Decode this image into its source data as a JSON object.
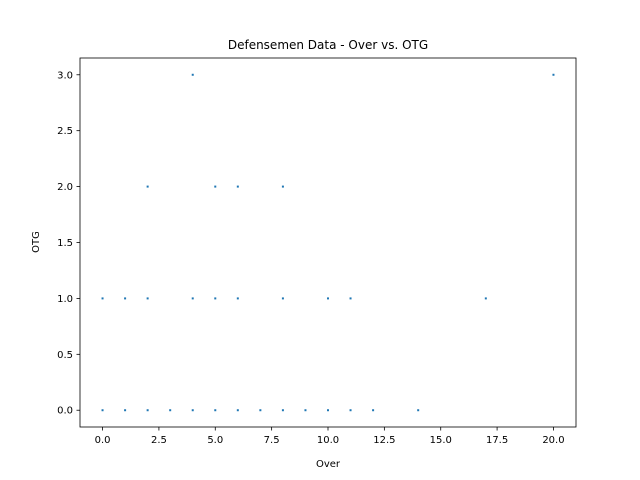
{
  "chart_data": {
    "type": "scatter",
    "title": "Defensemen Data - Over vs. OTG",
    "xlabel": "Over",
    "ylabel": "OTG",
    "xlim": [
      -1.0,
      21.0
    ],
    "ylim": [
      -0.15,
      3.15
    ],
    "xticks": [
      0.0,
      2.5,
      5.0,
      7.5,
      10.0,
      12.5,
      15.0,
      17.5,
      20.0
    ],
    "xtick_labels": [
      "0.0",
      "2.5",
      "5.0",
      "7.5",
      "10.0",
      "12.5",
      "15.0",
      "17.5",
      "20.0"
    ],
    "yticks": [
      0.0,
      0.5,
      1.0,
      1.5,
      2.0,
      2.5,
      3.0
    ],
    "ytick_labels": [
      "0.0",
      "0.5",
      "1.0",
      "1.5",
      "2.0",
      "2.5",
      "3.0"
    ],
    "grid": false,
    "legend": "none",
    "marker_color": "#1f77b4",
    "points": [
      {
        "x": 0,
        "y": 0
      },
      {
        "x": 1,
        "y": 0
      },
      {
        "x": 2,
        "y": 0
      },
      {
        "x": 3,
        "y": 0
      },
      {
        "x": 4,
        "y": 0
      },
      {
        "x": 5,
        "y": 0
      },
      {
        "x": 6,
        "y": 0
      },
      {
        "x": 7,
        "y": 0
      },
      {
        "x": 8,
        "y": 0
      },
      {
        "x": 9,
        "y": 0
      },
      {
        "x": 10,
        "y": 0
      },
      {
        "x": 11,
        "y": 0
      },
      {
        "x": 12,
        "y": 0
      },
      {
        "x": 14,
        "y": 0
      },
      {
        "x": 0,
        "y": 1
      },
      {
        "x": 1,
        "y": 1
      },
      {
        "x": 2,
        "y": 1
      },
      {
        "x": 4,
        "y": 1
      },
      {
        "x": 5,
        "y": 1
      },
      {
        "x": 6,
        "y": 1
      },
      {
        "x": 8,
        "y": 1
      },
      {
        "x": 10,
        "y": 1
      },
      {
        "x": 11,
        "y": 1
      },
      {
        "x": 17,
        "y": 1
      },
      {
        "x": 2,
        "y": 2
      },
      {
        "x": 5,
        "y": 2
      },
      {
        "x": 6,
        "y": 2
      },
      {
        "x": 8,
        "y": 2
      },
      {
        "x": 4,
        "y": 3
      },
      {
        "x": 20,
        "y": 3
      }
    ]
  }
}
